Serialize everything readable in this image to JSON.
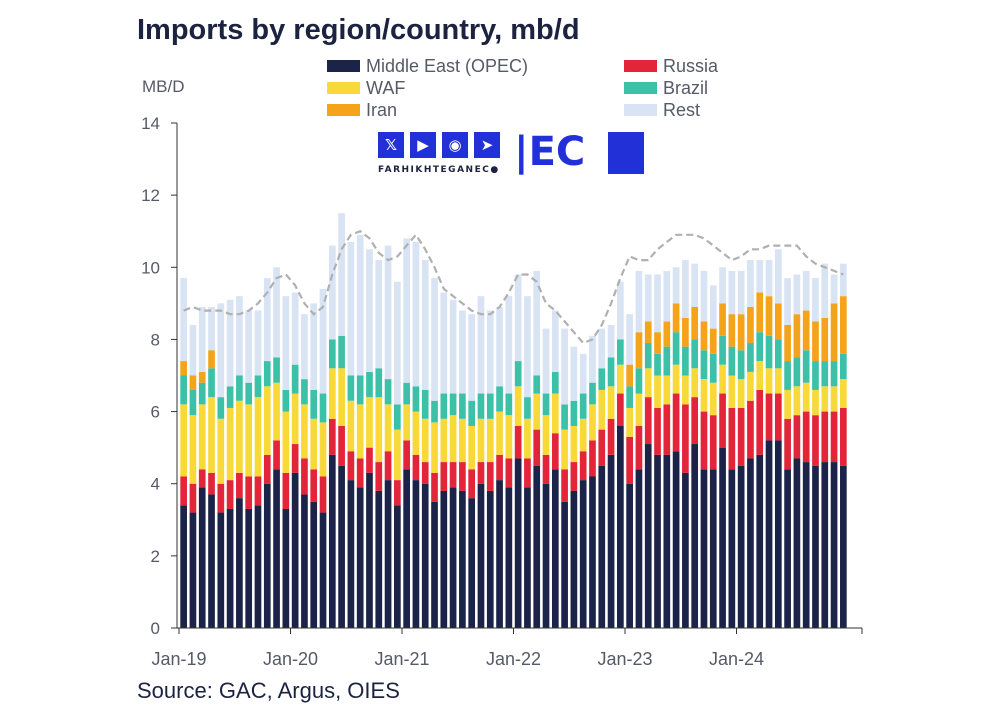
{
  "title": "Imports by region/country, mb/d",
  "source": "Source: GAC, Argus, OIES",
  "watermark": {
    "text": "FARHIKHTEGANEC●",
    "logo": "|EC",
    "icons": [
      "x-icon",
      "youtube-icon",
      "instagram-icon",
      "telegram-icon"
    ]
  },
  "colors": {
    "middle_east": "#1c2348",
    "russia": "#e3253a",
    "waf": "#f8d939",
    "brazil": "#3cc1a8",
    "iran": "#f5a31a",
    "rest": "#d8e3f3",
    "trend": "#b0b0b0",
    "axis": "#333333"
  },
  "chart_data": {
    "type": "bar",
    "stacked": true,
    "title": "Imports by region/country, mb/d",
    "ylabel": "MB/D",
    "xlabel": "",
    "ylim": [
      0,
      14
    ],
    "yticks": [
      0,
      2,
      4,
      6,
      8,
      10,
      12,
      14
    ],
    "xtick_labels": [
      {
        "label": "Jan-19",
        "index": 0
      },
      {
        "label": "Jan-20",
        "index": 12
      },
      {
        "label": "Jan-21",
        "index": 24
      },
      {
        "label": "Jan-22",
        "index": 36
      },
      {
        "label": "Jan-23",
        "index": 48
      },
      {
        "label": "Jan-24",
        "index": 60
      }
    ],
    "categories": [
      "Jan-19",
      "Feb-19",
      "Mar-19",
      "Apr-19",
      "May-19",
      "Jun-19",
      "Jul-19",
      "Aug-19",
      "Sep-19",
      "Oct-19",
      "Nov-19",
      "Dec-19",
      "Jan-20",
      "Feb-20",
      "Mar-20",
      "Apr-20",
      "May-20",
      "Jun-20",
      "Jul-20",
      "Aug-20",
      "Sep-20",
      "Oct-20",
      "Nov-20",
      "Dec-20",
      "Jan-21",
      "Feb-21",
      "Mar-21",
      "Apr-21",
      "May-21",
      "Jun-21",
      "Jul-21",
      "Aug-21",
      "Sep-21",
      "Oct-21",
      "Nov-21",
      "Dec-21",
      "Jan-22",
      "Feb-22",
      "Mar-22",
      "Apr-22",
      "May-22",
      "Jun-22",
      "Jul-22",
      "Aug-22",
      "Sep-22",
      "Oct-22",
      "Nov-22",
      "Dec-22",
      "Jan-23",
      "Feb-23",
      "Mar-23",
      "Apr-23",
      "May-23",
      "Jun-23",
      "Jul-23",
      "Aug-23",
      "Sep-23",
      "Oct-23",
      "Nov-23",
      "Dec-23",
      "Jan-24",
      "Feb-24",
      "Mar-24",
      "Apr-24",
      "May-24",
      "Jun-24",
      "Jul-24",
      "Aug-24",
      "Sep-24",
      "Oct-24",
      "Nov-24",
      "Dec-24"
    ],
    "legend": [
      "Middle East (OPEC)",
      "Russia",
      "WAF",
      "Brazil",
      "Iran",
      "Rest"
    ],
    "series": [
      {
        "name": "Middle East (OPEC)",
        "color_key": "middle_east",
        "values": [
          3.4,
          3.2,
          3.9,
          3.7,
          3.2,
          3.3,
          3.6,
          3.3,
          3.4,
          4.0,
          4.4,
          3.3,
          4.3,
          3.7,
          3.5,
          3.2,
          4.8,
          4.5,
          4.1,
          3.9,
          4.3,
          3.8,
          4.1,
          3.4,
          4.4,
          4.1,
          4.0,
          3.5,
          3.8,
          3.9,
          3.8,
          3.6,
          4.0,
          3.8,
          4.1,
          3.9,
          4.7,
          3.9,
          4.5,
          4.0,
          4.4,
          3.5,
          3.8,
          4.1,
          4.2,
          4.5,
          4.8,
          5.6,
          4.0,
          4.4,
          5.1,
          4.8,
          4.8,
          4.9,
          4.3,
          5.1,
          4.4,
          4.4,
          5.0,
          4.4,
          4.5,
          4.7,
          4.8,
          5.2,
          5.2,
          4.4,
          4.7,
          4.6,
          4.5,
          4.6,
          4.6,
          4.5
        ]
      },
      {
        "name": "Russia",
        "color_key": "russia",
        "values": [
          0.8,
          0.8,
          0.5,
          0.6,
          0.8,
          0.8,
          0.7,
          0.9,
          0.8,
          0.8,
          0.8,
          1.0,
          0.8,
          1.0,
          0.9,
          1.0,
          1.0,
          1.1,
          0.8,
          0.8,
          0.7,
          0.8,
          0.8,
          0.7,
          0.8,
          0.7,
          0.6,
          0.8,
          0.8,
          0.7,
          0.8,
          0.8,
          0.6,
          0.8,
          0.7,
          0.8,
          0.9,
          0.8,
          1.0,
          0.8,
          1.0,
          0.9,
          0.8,
          0.8,
          1.0,
          1.0,
          1.0,
          0.9,
          1.3,
          1.2,
          1.3,
          1.3,
          1.4,
          1.6,
          1.9,
          1.3,
          1.6,
          1.5,
          1.5,
          1.7,
          1.6,
          1.6,
          1.8,
          1.3,
          1.3,
          1.4,
          1.2,
          1.4,
          1.4,
          1.4,
          1.4,
          1.6
        ]
      },
      {
        "name": "WAF",
        "color_key": "waf",
        "values": [
          2.0,
          1.9,
          1.8,
          2.1,
          1.8,
          2.0,
          2.0,
          2.0,
          2.2,
          1.9,
          1.6,
          1.7,
          1.4,
          1.5,
          1.4,
          1.5,
          1.4,
          1.6,
          1.4,
          1.5,
          1.4,
          1.8,
          1.3,
          1.4,
          1.0,
          1.2,
          1.2,
          1.4,
          1.2,
          1.3,
          1.2,
          1.2,
          1.2,
          1.2,
          1.2,
          1.2,
          1.1,
          1.1,
          1.0,
          1.1,
          1.1,
          1.1,
          1.0,
          0.9,
          1.0,
          1.1,
          0.9,
          0.8,
          0.8,
          0.9,
          0.8,
          0.9,
          0.8,
          0.8,
          0.8,
          0.8,
          0.9,
          0.9,
          0.8,
          0.9,
          0.8,
          0.8,
          0.8,
          0.7,
          0.7,
          0.8,
          0.8,
          0.8,
          0.7,
          0.7,
          0.7,
          0.8
        ]
      },
      {
        "name": "Brazil",
        "color_key": "brazil",
        "values": [
          0.8,
          0.7,
          0.6,
          0.8,
          0.6,
          0.6,
          0.7,
          0.6,
          0.6,
          0.7,
          0.7,
          0.6,
          0.8,
          0.7,
          0.8,
          0.8,
          0.8,
          0.9,
          0.7,
          0.8,
          0.7,
          0.8,
          0.7,
          0.7,
          0.6,
          0.7,
          0.8,
          0.6,
          0.7,
          0.6,
          0.7,
          0.7,
          0.7,
          0.7,
          0.7,
          0.6,
          0.7,
          0.6,
          0.5,
          0.6,
          0.6,
          0.7,
          0.7,
          0.7,
          0.6,
          0.6,
          0.8,
          0.7,
          0.6,
          0.7,
          0.7,
          0.6,
          0.8,
          0.9,
          0.8,
          0.8,
          0.8,
          0.8,
          0.8,
          0.8,
          0.8,
          0.8,
          0.8,
          0.9,
          0.8,
          0.8,
          0.8,
          0.9,
          0.8,
          0.7,
          0.7,
          0.7
        ]
      },
      {
        "name": "Iran",
        "color_key": "iran",
        "values": [
          0.4,
          0.4,
          0.3,
          0.5,
          0.0,
          0.0,
          0.0,
          0.0,
          0.0,
          0.0,
          0.0,
          0.0,
          0.0,
          0.0,
          0.0,
          0.0,
          0.0,
          0.0,
          0.0,
          0.0,
          0.0,
          0.0,
          0.0,
          0.0,
          0.0,
          0.0,
          0.0,
          0.0,
          0.0,
          0.0,
          0.0,
          0.0,
          0.0,
          0.0,
          0.0,
          0.0,
          0.0,
          0.0,
          0.0,
          0.0,
          0.0,
          0.0,
          0.0,
          0.0,
          0.0,
          0.0,
          0.0,
          0.0,
          0.6,
          1.0,
          0.6,
          0.6,
          0.7,
          0.8,
          0.8,
          0.9,
          0.8,
          0.7,
          0.9,
          0.9,
          1.0,
          1.0,
          1.1,
          1.1,
          1.0,
          1.0,
          1.2,
          1.1,
          1.1,
          1.2,
          1.6,
          1.6
        ]
      },
      {
        "name": "Rest",
        "color_key": "rest",
        "values": [
          2.3,
          1.4,
          1.8,
          1.2,
          2.6,
          2.4,
          2.2,
          2.0,
          1.8,
          2.3,
          2.5,
          2.6,
          2.0,
          1.8,
          2.4,
          2.9,
          2.6,
          3.4,
          3.7,
          3.9,
          3.4,
          3.0,
          3.7,
          3.4,
          4.0,
          4.0,
          3.6,
          3.4,
          2.8,
          2.6,
          2.3,
          2.4,
          2.7,
          2.3,
          2.2,
          2.7,
          2.4,
          2.8,
          2.9,
          1.8,
          1.7,
          2.1,
          1.5,
          1.1,
          1.3,
          1.1,
          0.9,
          1.6,
          1.4,
          1.7,
          1.3,
          1.6,
          1.4,
          1.0,
          1.6,
          1.2,
          1.4,
          1.2,
          1.0,
          1.2,
          1.2,
          1.3,
          0.9,
          1.0,
          1.5,
          1.3,
          1.1,
          1.1,
          1.2,
          1.5,
          0.8,
          0.9
        ]
      }
    ],
    "trend_line": {
      "name": "Total (moving average)",
      "style": "dashed",
      "values": [
        8.8,
        8.9,
        8.8,
        8.8,
        8.8,
        8.7,
        8.7,
        8.8,
        9.0,
        9.3,
        9.7,
        9.8,
        9.5,
        9.0,
        8.7,
        8.9,
        9.8,
        10.5,
        10.9,
        11.0,
        10.8,
        10.4,
        10.2,
        10.3,
        10.6,
        10.9,
        10.5,
        10.0,
        9.4,
        9.2,
        9.0,
        8.8,
        8.7,
        8.7,
        8.9,
        9.3,
        9.8,
        9.8,
        9.6,
        9.0,
        8.8,
        8.5,
        8.2,
        7.9,
        8.0,
        8.4,
        9.0,
        9.7,
        10.3,
        10.2,
        10.2,
        10.5,
        10.7,
        10.9,
        10.9,
        10.9,
        10.8,
        10.6,
        10.4,
        10.2,
        10.3,
        10.5,
        10.5,
        10.6,
        10.6,
        10.6,
        10.6,
        10.3,
        10.1,
        10.0,
        9.9,
        9.8
      ]
    }
  }
}
